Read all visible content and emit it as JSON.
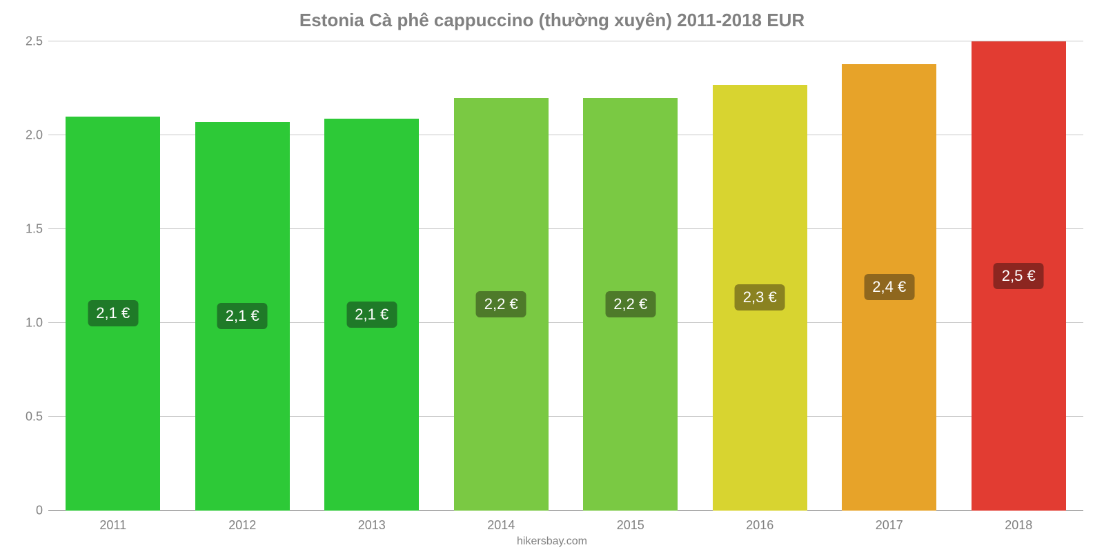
{
  "chart": {
    "type": "bar",
    "title": "Estonia Cà phê cappuccino (thường xuyên) 2011-2018 EUR",
    "title_color": "#808080",
    "title_fontsize": 26,
    "background_color": "#ffffff",
    "grid_color": "#c8c8c8",
    "baseline_color": "#808080",
    "axis_label_color": "#808080",
    "axis_fontsize": 18,
    "ylim": [
      0,
      2.5
    ],
    "yticks": [
      0,
      0.5,
      1.0,
      1.5,
      2.0,
      2.5
    ],
    "ytick_labels": [
      "0",
      "0.5",
      "1.0",
      "1.5",
      "2.0",
      "2.5"
    ],
    "categories": [
      "2011",
      "2012",
      "2013",
      "2014",
      "2015",
      "2016",
      "2017",
      "2018"
    ],
    "values": [
      2.1,
      2.07,
      2.09,
      2.2,
      2.2,
      2.27,
      2.38,
      2.5
    ],
    "value_labels": [
      "2,1 €",
      "2,1 €",
      "2,1 €",
      "2,2 €",
      "2,2 €",
      "2,3 €",
      "2,4 €",
      "2,5 €"
    ],
    "bar_colors": [
      "#2dc937",
      "#2dc937",
      "#2dc937",
      "#7ac943",
      "#7ac943",
      "#d8d430",
      "#e7a329",
      "#e23c32"
    ],
    "label_bg_colors": [
      "#1f7a28",
      "#1f7a28",
      "#1f7a28",
      "#4e7a2a",
      "#4e7a2a",
      "#8a8220",
      "#8f671e",
      "#8c2620"
    ],
    "bar_width_ratio": 0.73,
    "label_fontsize": 22,
    "label_text_color": "#ffffff"
  },
  "footer": {
    "text": "hikersbay.com",
    "color": "#808080",
    "fontsize": 16
  }
}
